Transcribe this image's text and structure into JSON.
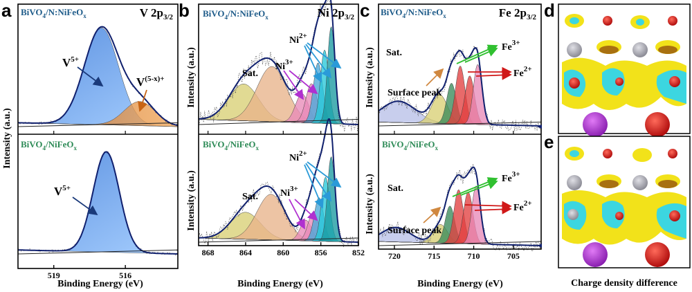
{
  "colors": {
    "sample_top": "#1f5c8a",
    "sample_bottom": "#2e8b57",
    "envelope": "#10206e",
    "dotted": "#555555",
    "v5_fill": "#3f86e0",
    "vx_fill": "#e8822e",
    "sat_fill": "#e8b48a",
    "olive_fill": "#d8cf74",
    "pink_fill": "#e88ab8",
    "blue_fill": "#4aa8d8",
    "cyan_fill": "#28c8d8",
    "teal_fill": "#1a9aa0",
    "red_fill": "#e24040",
    "green_fill": "#3a8a5a",
    "lav_fill": "#b8c0e8",
    "iso_yellow": "#f2e21a",
    "iso_cyan": "#3cd6e0",
    "atom_red": "#d01818",
    "atom_purple": "#b03ad8",
    "atom_gray": "#a8a8b0"
  },
  "panels": {
    "a": {
      "label": "a"
    },
    "b": {
      "label": "b"
    },
    "c": {
      "label": "c"
    },
    "d": {
      "label": "d"
    },
    "e": {
      "label": "e"
    }
  },
  "shared": {
    "ylabel": "Intensity (a.u.)",
    "xlabel": "Binding Energy (eV)",
    "sample_top_main": "BiVO",
    "sample_top_sub1": "4",
    "sample_top_mid": "/N:NiFeO",
    "sample_top_sub2": "x",
    "sample_bot_main": "BiVO",
    "sample_bot_sub1": "4",
    "sample_bot_mid": "/NiFeO",
    "sample_bot_sub2": "x",
    "caption": "Charge density difference"
  },
  "chart_data": [
    {
      "type": "line",
      "panel": "a",
      "title_main": "V 2p",
      "title_sub": "3/2",
      "xlabel": "Binding Energy (eV)",
      "ylabel": "Intensity (a.u.)",
      "xlim": [
        520.5,
        513.8
      ],
      "xticks": [
        519,
        516
      ],
      "xtick_labels": [
        "519",
        "516"
      ],
      "peaks_top": [
        {
          "name": "V5+",
          "center": 517.0,
          "sigma": 0.72,
          "amp": 1.0
        },
        {
          "name": "V(5-x)+",
          "center": 515.4,
          "sigma": 0.65,
          "amp": 0.25
        }
      ],
      "peaks_bottom": [
        {
          "name": "V5+",
          "center": 516.8,
          "sigma": 0.55,
          "amp": 1.0
        }
      ],
      "annotations": {
        "v5_main": "V",
        "v5_sup": "5+",
        "vx_main": "V",
        "vx_sup": "(5-x)+"
      }
    },
    {
      "type": "line",
      "panel": "b",
      "title_main": "Ni 2p",
      "title_sub": "3/2",
      "xlabel": "Binding Energy (eV)",
      "ylabel": "Intensity (a.u.)",
      "xlim": [
        869,
        852
      ],
      "xticks": [
        868,
        864,
        860,
        856,
        852
      ],
      "xtick_labels": [
        "868",
        "864",
        "860",
        "856",
        "852"
      ],
      "peaks_top": [
        {
          "name": "Sat.",
          "center": 864.2,
          "sigma": 1.6,
          "amp": 0.28,
          "fill": "olive"
        },
        {
          "name": "Sat.",
          "center": 861.2,
          "sigma": 1.6,
          "amp": 0.42,
          "fill": "sat"
        },
        {
          "name": "Ni3+",
          "center": 858.0,
          "sigma": 0.7,
          "amp": 0.22,
          "fill": "pink"
        },
        {
          "name": "Ni3+",
          "center": 857.0,
          "sigma": 0.6,
          "amp": 0.3,
          "fill": "pink"
        },
        {
          "name": "Ni2+",
          "center": 856.3,
          "sigma": 0.5,
          "amp": 0.46,
          "fill": "blue"
        },
        {
          "name": "Ni2+",
          "center": 855.6,
          "sigma": 0.45,
          "amp": 0.56,
          "fill": "cyan"
        },
        {
          "name": "Ni2+",
          "center": 854.9,
          "sigma": 0.4,
          "amp": 0.74,
          "fill": "teal"
        }
      ],
      "peaks_bottom": [
        {
          "name": "Sat.",
          "center": 864.0,
          "sigma": 1.6,
          "amp": 0.26,
          "fill": "olive"
        },
        {
          "name": "Sat.",
          "center": 861.3,
          "sigma": 1.5,
          "amp": 0.44,
          "fill": "sat"
        },
        {
          "name": "Ni3+",
          "center": 857.6,
          "sigma": 0.6,
          "amp": 0.2,
          "fill": "pink"
        },
        {
          "name": "Ni3+",
          "center": 856.8,
          "sigma": 0.55,
          "amp": 0.28,
          "fill": "pink"
        },
        {
          "name": "Ni2+",
          "center": 856.2,
          "sigma": 0.5,
          "amp": 0.42,
          "fill": "blue"
        },
        {
          "name": "Ni2+",
          "center": 855.5,
          "sigma": 0.45,
          "amp": 0.62,
          "fill": "cyan"
        },
        {
          "name": "Ni2+",
          "center": 854.9,
          "sigma": 0.4,
          "amp": 0.82,
          "fill": "teal"
        }
      ],
      "annotations": {
        "sat": "Sat.",
        "ni3_main": "Ni",
        "ni3_sup": "3+",
        "ni2_main": "Ni",
        "ni2_sup": "2+"
      }
    },
    {
      "type": "line",
      "panel": "c",
      "title_main": "Fe 2p",
      "title_sub": "3/2",
      "xlabel": "Binding Energy (eV)",
      "ylabel": "Intensity (a.u.)",
      "xlim": [
        722,
        701.5
      ],
      "xticks": [
        720,
        715,
        710,
        705
      ],
      "xtick_labels": [
        "720",
        "715",
        "710",
        "705"
      ],
      "peaks_top": [
        {
          "name": "Sat.",
          "center": 719.5,
          "sigma": 2.2,
          "amp": 0.22,
          "fill": "lav"
        },
        {
          "name": "Surface peak",
          "center": 714.3,
          "sigma": 1.0,
          "amp": 0.3,
          "fill": "olive"
        },
        {
          "name": "Fe3+",
          "center": 712.8,
          "sigma": 0.6,
          "amp": 0.42,
          "fill": "green"
        },
        {
          "name": "Fe3+",
          "center": 711.7,
          "sigma": 0.6,
          "amp": 0.6,
          "fill": "red"
        },
        {
          "name": "Fe2+",
          "center": 710.5,
          "sigma": 0.6,
          "amp": 0.5,
          "fill": "red"
        },
        {
          "name": "Fe2+",
          "center": 709.5,
          "sigma": 0.55,
          "amp": 0.62,
          "fill": "pink"
        }
      ],
      "peaks_bottom": [
        {
          "name": "Sat.",
          "center": 719.8,
          "sigma": 1.8,
          "amp": 0.14,
          "fill": "lav"
        },
        {
          "name": "Surface peak",
          "center": 714.2,
          "sigma": 0.9,
          "amp": 0.18,
          "fill": "olive"
        },
        {
          "name": "Fe3+",
          "center": 713.0,
          "sigma": 0.6,
          "amp": 0.36,
          "fill": "green"
        },
        {
          "name": "Fe3+",
          "center": 711.9,
          "sigma": 0.6,
          "amp": 0.52,
          "fill": "red"
        },
        {
          "name": "Fe2+",
          "center": 710.7,
          "sigma": 0.6,
          "amp": 0.5,
          "fill": "red"
        },
        {
          "name": "Fe2+",
          "center": 709.7,
          "sigma": 0.55,
          "amp": 0.56,
          "fill": "pink"
        }
      ],
      "annotations": {
        "sat": "Sat.",
        "surface": "Surface peak",
        "fe3_main": "Fe",
        "fe3_sup": "3+",
        "fe2_main": "Fe",
        "fe2_sup": "2+"
      }
    }
  ]
}
